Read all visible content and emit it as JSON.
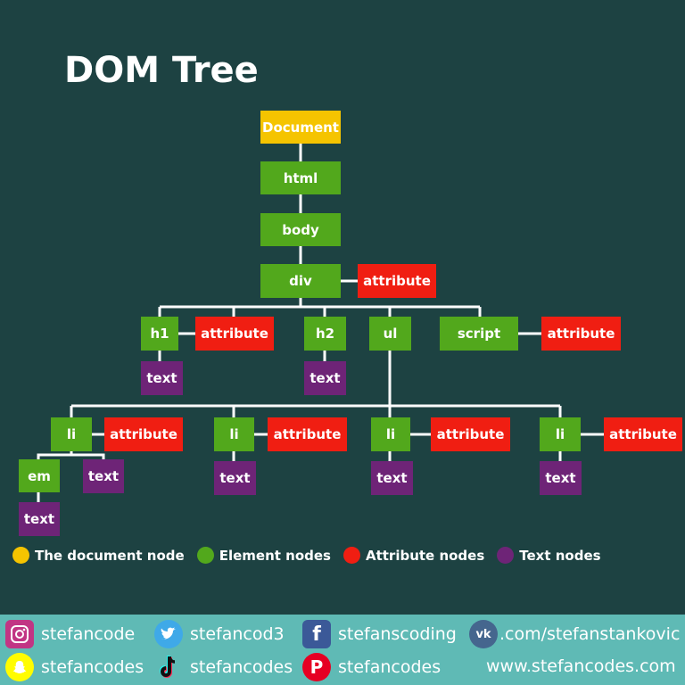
{
  "title": "DOM Tree",
  "nodes": {
    "document": "Document",
    "html": "html",
    "body": "body",
    "div": "div",
    "div_attr": "attribute",
    "h1": "h1",
    "h1_attr": "attribute",
    "h1_text": "text",
    "h2": "h2",
    "h2_text": "text",
    "ul": "ul",
    "script": "script",
    "script_attr": "attribute",
    "li1": "li",
    "li1_attr": "attribute",
    "em": "em",
    "em_text": "text",
    "li1_text": "text",
    "li2": "li",
    "li2_attr": "attribute",
    "li2_text": "text",
    "li3": "li",
    "li3_attr": "attribute",
    "li3_text": "text",
    "li4": "li",
    "li4_attr": "attribute",
    "li4_text": "text"
  },
  "legend": [
    {
      "label": "The document node",
      "color": "#f5c400"
    },
    {
      "label": "Element nodes",
      "color": "#52a81c"
    },
    {
      "label": "Attribute nodes",
      "color": "#f01e12"
    },
    {
      "label": "Text nodes",
      "color": "#6e2477"
    }
  ],
  "colors": {
    "background": "#1d4242",
    "document": "#f5c400",
    "element": "#52a81c",
    "attribute": "#f01e12",
    "text": "#6e2477",
    "footer": "#5fbab5",
    "connector": "#ffffff"
  },
  "footer": {
    "instagram": {
      "icon": "instagram-icon",
      "handle": "stefancode"
    },
    "twitter": {
      "icon": "twitter-icon",
      "handle": "stefancod3"
    },
    "facebook": {
      "icon": "facebook-icon",
      "handle": "stefanscoding"
    },
    "vk": {
      "icon": "vk-icon",
      "handle": ".com/stefanstankovic"
    },
    "snapchat": {
      "icon": "snapchat-icon",
      "handle": "stefancodes"
    },
    "tiktok": {
      "icon": "tiktok-icon",
      "handle": "stefancodes"
    },
    "pinterest": {
      "icon": "pinterest-icon",
      "handle": "stefancodes"
    },
    "website": "www.stefancodes.com"
  }
}
